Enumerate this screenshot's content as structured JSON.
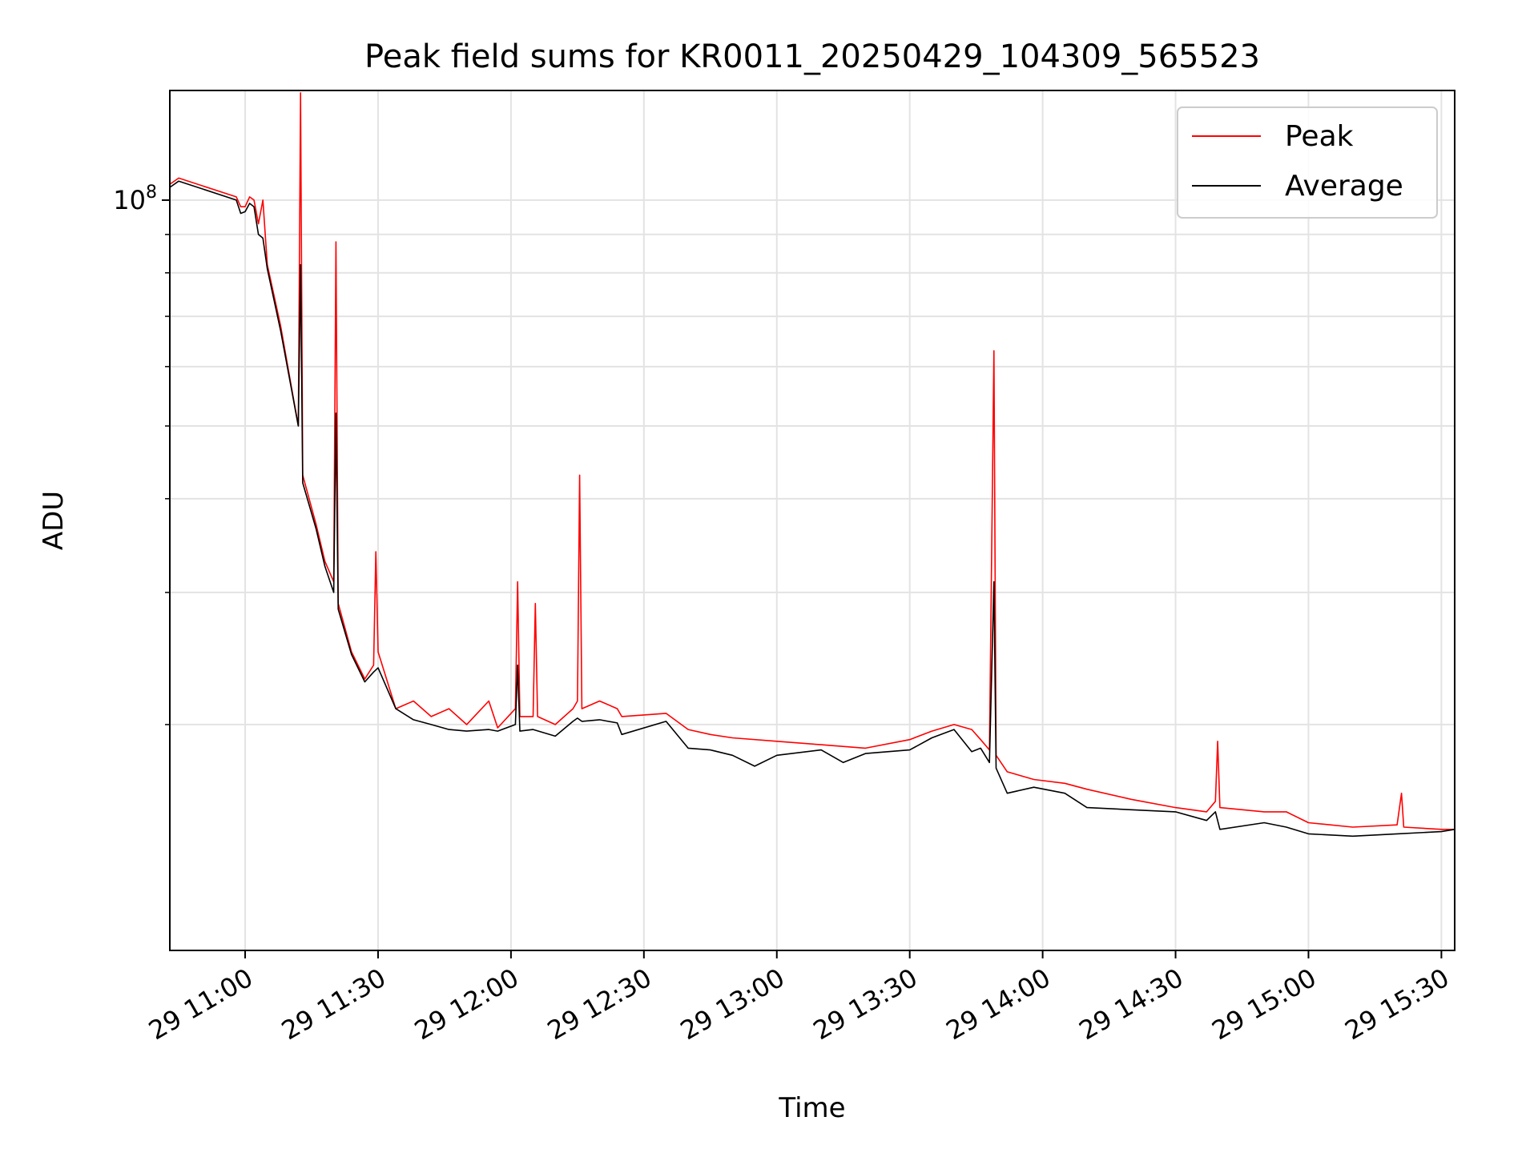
{
  "chart_data": {
    "type": "line",
    "title": "Peak field sums for KR0011_20250429_104309_565523",
    "xlabel": "Time",
    "ylabel": "ADU",
    "y_scale": "log",
    "ylim": [
      10000000,
      140000000
    ],
    "xlim": [
      "2025-04-29 10:43",
      "2025-04-29 15:33"
    ],
    "x_ticks": [
      "2025-04-29 11:00",
      "2025-04-29 11:30",
      "2025-04-29 12:00",
      "2025-04-29 12:30",
      "2025-04-29 13:00",
      "2025-04-29 13:30",
      "2025-04-29 14:00",
      "2025-04-29 14:30",
      "2025-04-29 15:00",
      "2025-04-29 15:30"
    ],
    "x_tick_labels": [
      "29 11:00",
      "29 11:30",
      "29 12:00",
      "29 12:30",
      "29 13:00",
      "29 13:30",
      "29 14:00",
      "29 14:30",
      "29 15:00",
      "29 15:30"
    ],
    "y_ticks_major": [
      {
        "value": 100000000,
        "label": "10^8"
      }
    ],
    "grid": true,
    "legend_position": "top-right",
    "series": [
      {
        "name": "Peak",
        "color": "#ff0000",
        "points": [
          [
            "2025-04-29 10:43",
            105000000
          ],
          [
            "2025-04-29 10:45",
            107000000
          ],
          [
            "2025-04-29 10:58",
            101000000
          ],
          [
            "2025-04-29 10:59",
            98000000
          ],
          [
            "2025-04-29 11:00",
            98000000
          ],
          [
            "2025-04-29 11:01",
            101000000
          ],
          [
            "2025-04-29 11:02",
            100000000
          ],
          [
            "2025-04-29 11:03",
            93000000
          ],
          [
            "2025-04-29 11:04",
            100000000
          ],
          [
            "2025-04-29 11:05",
            82000000
          ],
          [
            "2025-04-29 11:08",
            68000000
          ],
          [
            "2025-04-29 11:12",
            50000000
          ],
          [
            "2025-04-29 11:12:30",
            139000000
          ],
          [
            "2025-04-29 11:13",
            43000000
          ],
          [
            "2025-04-29 11:16",
            37000000
          ],
          [
            "2025-04-29 11:18",
            33000000
          ],
          [
            "2025-04-29 11:20",
            31000000
          ],
          [
            "2025-04-29 11:20:30",
            88000000
          ],
          [
            "2025-04-29 11:21",
            29000000
          ],
          [
            "2025-04-29 11:24",
            25000000
          ],
          [
            "2025-04-29 11:27",
            23000000
          ],
          [
            "2025-04-29 11:29",
            24000000
          ],
          [
            "2025-04-29 11:29:30",
            34000000
          ],
          [
            "2025-04-29 11:30",
            25000000
          ],
          [
            "2025-04-29 11:34",
            21000000
          ],
          [
            "2025-04-29 11:38",
            21500000
          ],
          [
            "2025-04-29 11:42",
            20500000
          ],
          [
            "2025-04-29 11:46",
            21000000
          ],
          [
            "2025-04-29 11:50",
            20000000
          ],
          [
            "2025-04-29 11:55",
            21500000
          ],
          [
            "2025-04-29 11:57",
            19800000
          ],
          [
            "2025-04-29 12:01",
            21000000
          ],
          [
            "2025-04-29 12:01:30",
            31000000
          ],
          [
            "2025-04-29 12:02",
            20500000
          ],
          [
            "2025-04-29 12:05",
            20500000
          ],
          [
            "2025-04-29 12:05:30",
            29000000
          ],
          [
            "2025-04-29 12:06",
            20500000
          ],
          [
            "2025-04-29 12:10",
            20000000
          ],
          [
            "2025-04-29 12:14",
            21000000
          ],
          [
            "2025-04-29 12:15",
            21500000
          ],
          [
            "2025-04-29 12:15:30",
            43000000
          ],
          [
            "2025-04-29 12:16",
            21000000
          ],
          [
            "2025-04-29 12:20",
            21500000
          ],
          [
            "2025-04-29 12:24",
            21000000
          ],
          [
            "2025-04-29 12:25",
            20500000
          ],
          [
            "2025-04-29 12:35",
            20700000
          ],
          [
            "2025-04-29 12:40",
            19700000
          ],
          [
            "2025-04-29 12:45",
            19400000
          ],
          [
            "2025-04-29 12:50",
            19200000
          ],
          [
            "2025-04-29 13:00",
            19000000
          ],
          [
            "2025-04-29 13:10",
            18800000
          ],
          [
            "2025-04-29 13:20",
            18600000
          ],
          [
            "2025-04-29 13:30",
            19100000
          ],
          [
            "2025-04-29 13:35",
            19600000
          ],
          [
            "2025-04-29 13:40",
            20000000
          ],
          [
            "2025-04-29 13:44",
            19700000
          ],
          [
            "2025-04-29 13:46",
            19100000
          ],
          [
            "2025-04-29 13:48",
            18500000
          ],
          [
            "2025-04-29 13:49",
            63000000
          ],
          [
            "2025-04-29 13:49:30",
            18200000
          ],
          [
            "2025-04-29 13:52",
            17300000
          ],
          [
            "2025-04-29 13:58",
            16900000
          ],
          [
            "2025-04-29 14:05",
            16700000
          ],
          [
            "2025-04-29 14:10",
            16400000
          ],
          [
            "2025-04-29 14:20",
            15900000
          ],
          [
            "2025-04-29 14:30",
            15500000
          ],
          [
            "2025-04-29 14:37",
            15300000
          ],
          [
            "2025-04-29 14:39",
            15800000
          ],
          [
            "2025-04-29 14:39:30",
            19000000
          ],
          [
            "2025-04-29 14:40",
            15500000
          ],
          [
            "2025-04-29 14:50",
            15300000
          ],
          [
            "2025-04-29 14:55",
            15300000
          ],
          [
            "2025-04-29 15:00",
            14800000
          ],
          [
            "2025-04-29 15:10",
            14600000
          ],
          [
            "2025-04-29 15:20",
            14700000
          ],
          [
            "2025-04-29 15:21",
            16200000
          ],
          [
            "2025-04-29 15:21:30",
            14600000
          ],
          [
            "2025-04-29 15:30",
            14500000
          ],
          [
            "2025-04-29 15:33",
            14500000
          ]
        ]
      },
      {
        "name": "Average",
        "color": "#000000",
        "points": [
          [
            "2025-04-29 10:43",
            104000000
          ],
          [
            "2025-04-29 10:45",
            106000000
          ],
          [
            "2025-04-29 10:58",
            100000000
          ],
          [
            "2025-04-29 10:59",
            96000000
          ],
          [
            "2025-04-29 11:00",
            96500000
          ],
          [
            "2025-04-29 11:01",
            99000000
          ],
          [
            "2025-04-29 11:02",
            98000000
          ],
          [
            "2025-04-29 11:03",
            90000000
          ],
          [
            "2025-04-29 11:04",
            89000000
          ],
          [
            "2025-04-29 11:05",
            81000000
          ],
          [
            "2025-04-29 11:08",
            67000000
          ],
          [
            "2025-04-29 11:12",
            50000000
          ],
          [
            "2025-04-29 11:12:30",
            82000000
          ],
          [
            "2025-04-29 11:13",
            42000000
          ],
          [
            "2025-04-29 11:16",
            36500000
          ],
          [
            "2025-04-29 11:18",
            32500000
          ],
          [
            "2025-04-29 11:20",
            30000000
          ],
          [
            "2025-04-29 11:20:30",
            52000000
          ],
          [
            "2025-04-29 11:21",
            28500000
          ],
          [
            "2025-04-29 11:24",
            24800000
          ],
          [
            "2025-04-29 11:27",
            22800000
          ],
          [
            "2025-04-29 11:29",
            23500000
          ],
          [
            "2025-04-29 11:30",
            23800000
          ],
          [
            "2025-04-29 11:34",
            21000000
          ],
          [
            "2025-04-29 11:38",
            20300000
          ],
          [
            "2025-04-29 11:42",
            20000000
          ],
          [
            "2025-04-29 11:46",
            19700000
          ],
          [
            "2025-04-29 11:50",
            19600000
          ],
          [
            "2025-04-29 11:55",
            19700000
          ],
          [
            "2025-04-29 11:57",
            19600000
          ],
          [
            "2025-04-29 12:01",
            20000000
          ],
          [
            "2025-04-29 12:01:30",
            24000000
          ],
          [
            "2025-04-29 12:02",
            19600000
          ],
          [
            "2025-04-29 12:05",
            19700000
          ],
          [
            "2025-04-29 12:10",
            19300000
          ],
          [
            "2025-04-29 12:14",
            20200000
          ],
          [
            "2025-04-29 12:15",
            20400000
          ],
          [
            "2025-04-29 12:16",
            20200000
          ],
          [
            "2025-04-29 12:20",
            20300000
          ],
          [
            "2025-04-29 12:24",
            20100000
          ],
          [
            "2025-04-29 12:25",
            19400000
          ],
          [
            "2025-04-29 12:35",
            20200000
          ],
          [
            "2025-04-29 12:40",
            18600000
          ],
          [
            "2025-04-29 12:45",
            18500000
          ],
          [
            "2025-04-29 12:50",
            18200000
          ],
          [
            "2025-04-29 12:55",
            17600000
          ],
          [
            "2025-04-29 13:00",
            18200000
          ],
          [
            "2025-04-29 13:10",
            18500000
          ],
          [
            "2025-04-29 13:15",
            17800000
          ],
          [
            "2025-04-29 13:20",
            18300000
          ],
          [
            "2025-04-29 13:30",
            18500000
          ],
          [
            "2025-04-29 13:35",
            19200000
          ],
          [
            "2025-04-29 13:40",
            19700000
          ],
          [
            "2025-04-29 13:44",
            18400000
          ],
          [
            "2025-04-29 13:46",
            18600000
          ],
          [
            "2025-04-29 13:48",
            17800000
          ],
          [
            "2025-04-29 13:49",
            31000000
          ],
          [
            "2025-04-29 13:49:30",
            17500000
          ],
          [
            "2025-04-29 13:52",
            16200000
          ],
          [
            "2025-04-29 13:58",
            16500000
          ],
          [
            "2025-04-29 14:05",
            16200000
          ],
          [
            "2025-04-29 14:10",
            15500000
          ],
          [
            "2025-04-29 14:20",
            15400000
          ],
          [
            "2025-04-29 14:30",
            15300000
          ],
          [
            "2025-04-29 14:37",
            14900000
          ],
          [
            "2025-04-29 14:39",
            15300000
          ],
          [
            "2025-04-29 14:40",
            14500000
          ],
          [
            "2025-04-29 14:50",
            14800000
          ],
          [
            "2025-04-29 14:55",
            14600000
          ],
          [
            "2025-04-29 15:00",
            14300000
          ],
          [
            "2025-04-29 15:10",
            14200000
          ],
          [
            "2025-04-29 15:20",
            14300000
          ],
          [
            "2025-04-29 15:30",
            14400000
          ],
          [
            "2025-04-29 15:33",
            14500000
          ]
        ]
      }
    ]
  }
}
